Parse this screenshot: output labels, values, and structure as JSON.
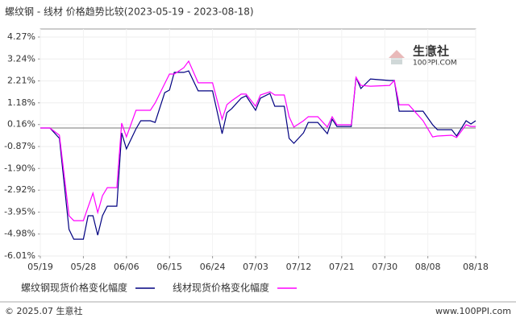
{
  "chart_data": {
    "type": "line",
    "title": "螺纹钢 - 线材 价格趋势比较(2023-05-19 - 2023-08-18)",
    "watermark": [
      "生意社",
      "100PPI.COM"
    ],
    "footer_left": "© 2025.07 生意社",
    "footer_right": "www.100PPI.com",
    "x": [
      "05/19",
      "05/21",
      "05/23",
      "05/25",
      "05/26",
      "05/28",
      "05/29",
      "05/30",
      "05/31",
      "06/01",
      "06/02",
      "06/04",
      "06/05",
      "06/06",
      "06/08",
      "06/09",
      "06/11",
      "06/12",
      "06/14",
      "06/15",
      "06/16",
      "06/18",
      "06/19",
      "06/21",
      "06/24",
      "06/26",
      "06/27",
      "06/28",
      "06/30",
      "07/01",
      "07/03",
      "07/04",
      "07/06",
      "07/07",
      "07/09",
      "07/10",
      "07/11",
      "07/13",
      "07/14",
      "07/16",
      "07/18",
      "07/19",
      "07/20",
      "07/23",
      "07/24",
      "07/25",
      "07/27",
      "07/31",
      "08/01",
      "08/02",
      "08/04",
      "08/07",
      "08/09",
      "08/10",
      "08/13",
      "08/14",
      "08/16",
      "08/17",
      "08/18"
    ],
    "xlim": [
      "05/19",
      "08/18"
    ],
    "xticks": [
      "05/19",
      "05/28",
      "06/06",
      "06/15",
      "06/24",
      "07/03",
      "07/12",
      "07/21",
      "07/30",
      "08/08",
      "08/18"
    ],
    "ylim": [
      -6.01,
      4.27
    ],
    "yticks": [
      {
        "value": 4.27,
        "label": "4.27%"
      },
      {
        "value": 3.24,
        "label": "3.24%"
      },
      {
        "value": 2.21,
        "label": "2.21%"
      },
      {
        "value": 1.18,
        "label": "1.18%"
      },
      {
        "value": 0.16,
        "label": "0.16%"
      },
      {
        "value": -0.87,
        "label": "-0.87%"
      },
      {
        "value": -1.9,
        "label": "-1.90%"
      },
      {
        "value": -2.92,
        "label": "-2.92%"
      },
      {
        "value": -3.95,
        "label": "-3.95%"
      },
      {
        "value": -4.98,
        "label": "-4.98%"
      },
      {
        "value": -6.01,
        "label": "-6.01%"
      }
    ],
    "positive_label_color": "#cc0000",
    "negative_label_color": "#008000",
    "grid": true,
    "series": [
      {
        "name": "螺纹钢现货价格变化幅度",
        "color": "#000080",
        "values": [
          0,
          0,
          -0.49,
          -4.76,
          -5.22,
          -5.22,
          -4.12,
          -4.12,
          -5.03,
          -4.12,
          -3.67,
          -3.67,
          -0.23,
          -0.98,
          -0.04,
          0.34,
          0.34,
          0.26,
          1.66,
          1.78,
          2.61,
          2.61,
          2.68,
          1.74,
          1.74,
          -0.27,
          0.72,
          0.91,
          1.4,
          1.51,
          0.83,
          1.4,
          1.62,
          1.02,
          1.02,
          -0.49,
          -0.72,
          -0.23,
          0.26,
          0.26,
          -0.27,
          0.41,
          0.07,
          0.07,
          2.38,
          1.85,
          2.3,
          2.23,
          2.23,
          0.79,
          0.79,
          0.79,
          0.15,
          -0.08,
          -0.08,
          -0.38,
          0.34,
          0.19,
          0.34
        ]
      },
      {
        "name": "线材现货价格变化幅度",
        "color": "#ff00ff",
        "values": [
          0,
          0,
          -0.34,
          -4.12,
          -4.35,
          -4.35,
          -3.71,
          -3.06,
          -3.97,
          -3.18,
          -2.8,
          -2.8,
          0.23,
          -0.42,
          0.83,
          0.83,
          0.83,
          1.17,
          2.08,
          2.53,
          2.53,
          2.83,
          3.14,
          2.12,
          2.12,
          0.41,
          1.09,
          1.28,
          1.59,
          1.59,
          1.02,
          1.55,
          1.7,
          1.55,
          1.55,
          0.53,
          0.04,
          0.34,
          0.53,
          0.53,
          0.04,
          0.53,
          0.15,
          0.15,
          2.38,
          2.0,
          1.96,
          2.0,
          2.23,
          1.09,
          1.09,
          0.34,
          -0.42,
          -0.38,
          -0.34,
          -0.45,
          0.15,
          0.07,
          0.07
        ]
      }
    ]
  }
}
